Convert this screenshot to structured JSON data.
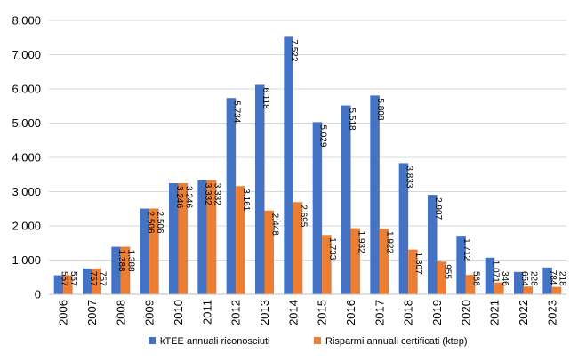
{
  "chart_data": {
    "type": "bar",
    "categories": [
      "2006",
      "2007",
      "2008",
      "2009",
      "2010",
      "2011",
      "2012",
      "2013",
      "2014",
      "2015",
      "2016",
      "2017",
      "2018",
      "2019",
      "2020",
      "2021",
      "2022",
      "2023"
    ],
    "series": [
      {
        "name": "kTEE annuali riconosciuti",
        "color": "#4472C4",
        "values": [
          557,
          757,
          1388,
          2506,
          3246,
          3332,
          5734,
          6118,
          7522,
          5029,
          5518,
          5808,
          3833,
          2907,
          1712,
          1071,
          654,
          784
        ],
        "labels": [
          "557",
          "757",
          "1.388",
          "2.506",
          "3.246",
          "3.332",
          "5.734",
          "6.118",
          "7.522",
          "5.029",
          "5.518",
          "5.808",
          "3.833",
          "2.907",
          "1.712",
          "1.071",
          "654",
          "784"
        ]
      },
      {
        "name": "Risparmi annuali certificati (ktep)",
        "color": "#ED7D31",
        "values": [
          557,
          757,
          1388,
          2506,
          3246,
          3332,
          3161,
          2448,
          2695,
          1733,
          1932,
          1922,
          1307,
          955,
          568,
          346,
          228,
          218
        ],
        "labels": [
          "557",
          "757",
          "1.388",
          "2.506",
          "3.246",
          "3.332",
          "3.161",
          "2.448",
          "2.695",
          "1.733",
          "1.932",
          "1.922",
          "1.307",
          "955",
          "568",
          "346",
          "228",
          "218"
        ]
      }
    ],
    "yticks": [
      "0",
      "1.000",
      "2.000",
      "3.000",
      "4.000",
      "5.000",
      "6.000",
      "7.000",
      "8.000"
    ],
    "ylim": [
      0,
      8000
    ],
    "grid": true,
    "legend": "bottom",
    "title": "",
    "xlabel": "",
    "ylabel": ""
  }
}
